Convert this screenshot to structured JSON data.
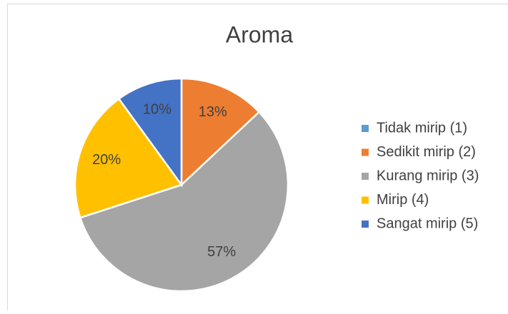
{
  "chart_data": {
    "type": "pie",
    "title": "Aroma",
    "categories": [
      "Tidak mirip (1)",
      "Sedikit mirip (2)",
      "Kurang mirip (3)",
      "Mirip (4)",
      "Sangat mirip (5)"
    ],
    "values": [
      0,
      13,
      57,
      20,
      10
    ],
    "value_labels": [
      null,
      "13%",
      "57%",
      "20%",
      "10%"
    ],
    "colors": [
      "#5b9bd5",
      "#ed7d31",
      "#a5a5a5",
      "#ffc000",
      "#4472c4"
    ],
    "legend": "right"
  }
}
